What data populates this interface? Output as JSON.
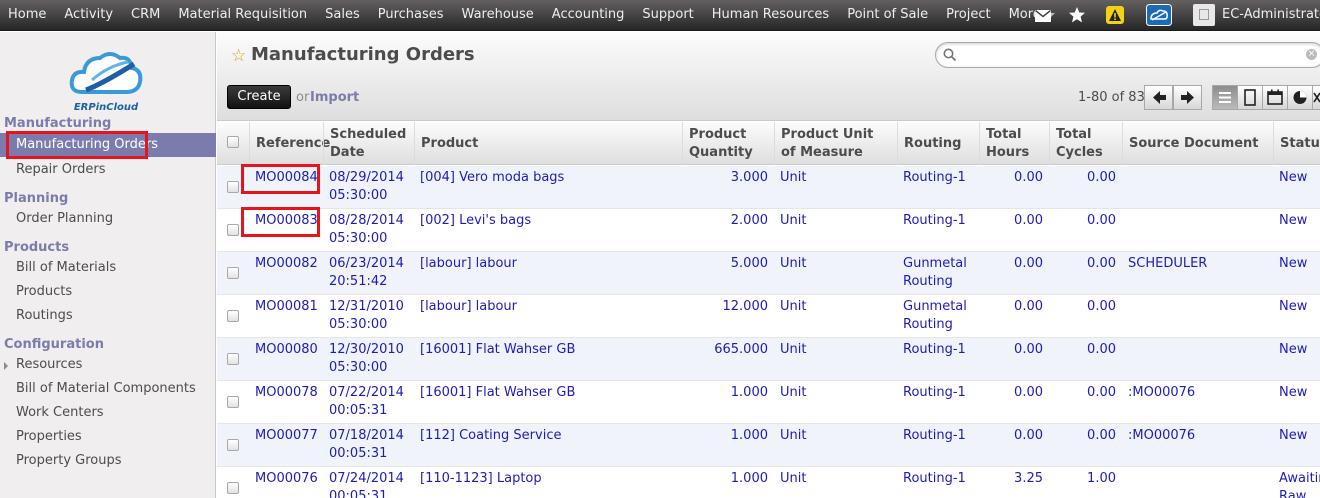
{
  "topbar": {
    "menu": [
      "Home",
      "Activity",
      "CRM",
      "Material Requisition",
      "Sales",
      "Purchases",
      "Warehouse",
      "Accounting",
      "Support",
      "Human Resources",
      "Point of Sale",
      "Project",
      "More"
    ],
    "user": "EC-Administrator"
  },
  "sidebar": {
    "logo_text": "ERPinCloud",
    "sections": [
      {
        "title": "Manufacturing",
        "items": [
          "Manufacturing Orders",
          "Repair Orders"
        ]
      },
      {
        "title": "Planning",
        "items": [
          "Order Planning"
        ]
      },
      {
        "title": "Products",
        "items": [
          "Bill of Materials",
          "Products",
          "Routings"
        ]
      },
      {
        "title": "Configuration",
        "items": [
          "Resources",
          "Bill of Material Components",
          "Work Centers",
          "Properties",
          "Property Groups"
        ]
      }
    ],
    "active_item": "Manufacturing Orders"
  },
  "header": {
    "title": "Manufacturing Orders",
    "search_placeholder": "",
    "create_label": "Create",
    "or_label": "or",
    "import_label": "Import",
    "pager": "1-80 of 83"
  },
  "table": {
    "columns": [
      "Reference",
      "Scheduled Date",
      "Product",
      "Product Quantity",
      "Product Unit of Measure",
      "Routing",
      "Total Hours",
      "Total Cycles",
      "Source Document",
      "Status"
    ],
    "rows": [
      {
        "reference": "MO00084",
        "date": "08/29/2014",
        "time": "05:30:00",
        "product": "[004] Vero moda bags",
        "qty": "3.000",
        "uom": "Unit",
        "routing": "Routing-1",
        "routing2": "",
        "hours": "0.00",
        "cycles": "0.00",
        "source": "",
        "status": "New",
        "status2": ""
      },
      {
        "reference": "MO00083",
        "date": "08/28/2014",
        "time": "05:30:00",
        "product": "[002] Levi's bags",
        "qty": "2.000",
        "uom": "Unit",
        "routing": "Routing-1",
        "routing2": "",
        "hours": "0.00",
        "cycles": "0.00",
        "source": "",
        "status": "New",
        "status2": ""
      },
      {
        "reference": "MO00082",
        "date": "06/23/2014",
        "time": "20:51:42",
        "product": "[labour] labour",
        "qty": "5.000",
        "uom": "Unit",
        "routing": "Gunmetal",
        "routing2": "Routing",
        "hours": "0.00",
        "cycles": "0.00",
        "source": "SCHEDULER",
        "status": "New",
        "status2": ""
      },
      {
        "reference": "MO00081",
        "date": "12/31/2010",
        "time": "05:30:00",
        "product": "[labour] labour",
        "qty": "12.000",
        "uom": "Unit",
        "routing": "Gunmetal",
        "routing2": "Routing",
        "hours": "0.00",
        "cycles": "0.00",
        "source": "",
        "status": "New",
        "status2": ""
      },
      {
        "reference": "MO00080",
        "date": "12/30/2010",
        "time": "05:30:00",
        "product": "[16001] Flat Wahser GB",
        "qty": "665.000",
        "uom": "Unit",
        "routing": "Routing-1",
        "routing2": "",
        "hours": "0.00",
        "cycles": "0.00",
        "source": "",
        "status": "New",
        "status2": ""
      },
      {
        "reference": "MO00078",
        "date": "07/22/2014",
        "time": "00:05:31",
        "product": "[16001] Flat Wahser GB",
        "qty": "1.000",
        "uom": "Unit",
        "routing": "Routing-1",
        "routing2": "",
        "hours": "0.00",
        "cycles": "0.00",
        "source": ":MO00076",
        "status": "New",
        "status2": ""
      },
      {
        "reference": "MO00077",
        "date": "07/18/2014",
        "time": "00:05:31",
        "product": "[112] Coating Service",
        "qty": "1.000",
        "uom": "Unit",
        "routing": "Routing-1",
        "routing2": "",
        "hours": "0.00",
        "cycles": "0.00",
        "source": ":MO00076",
        "status": "New",
        "status2": ""
      },
      {
        "reference": "MO00076",
        "date": "07/24/2014",
        "time": "00:05:31",
        "product": "[110-1123] Laptop",
        "qty": "1.000",
        "uom": "Unit",
        "routing": "Routing-1",
        "routing2": "",
        "hours": "3.25",
        "cycles": "1.00",
        "source": "",
        "status": "Awaitin",
        "status2": "Raw"
      }
    ]
  },
  "colors": {
    "accent": "#7c7bad",
    "link": "#1d1bb9",
    "highlight_box": "#e8141b"
  },
  "icons": {
    "mail": "mail-icon",
    "star": "star-icon",
    "alert": "alert-icon",
    "app": "cloud-app-icon",
    "search": "search-icon"
  }
}
